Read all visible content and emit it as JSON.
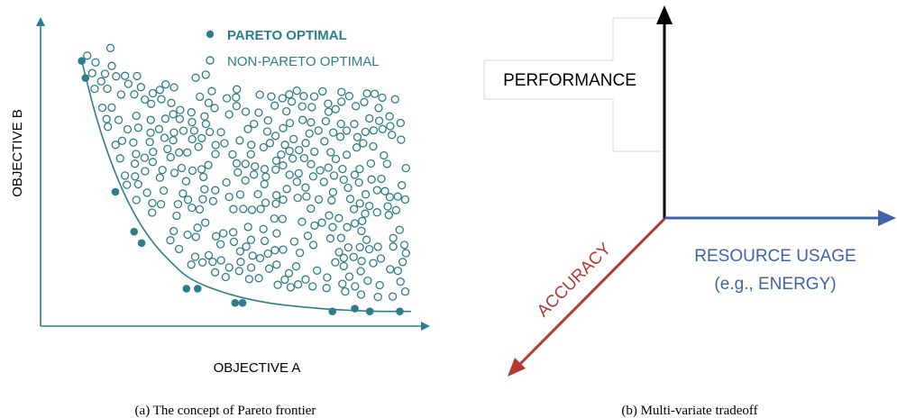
{
  "colors": {
    "teal": "#2e7d8c",
    "black": "#000000",
    "blue": "#3d63a8",
    "red": "#b33a32",
    "frame": "#d0d0d0"
  },
  "left_panel": {
    "caption": "(a) The concept of Pareto frontier",
    "legend": {
      "pareto_label": "PARETO OPTIMAL",
      "non_pareto_label": "NON-PARETO OPTIMAL"
    },
    "chart_data": {
      "type": "scatter",
      "xlabel": "OBJECTIVE A",
      "ylabel": "OBJECTIVE B",
      "xlim": [
        0,
        1
      ],
      "ylim": [
        0,
        1
      ],
      "grid": false,
      "legend_position": "top-right",
      "series": [
        {
          "name": "PARETO OPTIMAL",
          "style": "filled",
          "points": [
            [
              0.11,
              0.9
            ],
            [
              0.12,
              0.84
            ],
            [
              0.2,
              0.44
            ],
            [
              0.25,
              0.3
            ],
            [
              0.27,
              0.26
            ],
            [
              0.39,
              0.1
            ],
            [
              0.42,
              0.1
            ],
            [
              0.52,
              0.05
            ],
            [
              0.54,
              0.05
            ],
            [
              0.78,
              0.02
            ],
            [
              0.84,
              0.03
            ],
            [
              0.88,
              0.02
            ],
            [
              0.96,
              0.02
            ]
          ]
        },
        {
          "name": "NON-PARETO OPTIMAL",
          "style": "hollow"
        }
      ],
      "frontier_curve": [
        [
          0.11,
          0.9
        ],
        [
          0.15,
          0.69
        ],
        [
          0.2,
          0.5
        ],
        [
          0.25,
          0.36
        ],
        [
          0.3,
          0.26
        ],
        [
          0.35,
          0.19
        ],
        [
          0.4,
          0.13
        ],
        [
          0.5,
          0.08
        ],
        [
          0.6,
          0.05
        ],
        [
          0.7,
          0.035
        ],
        [
          0.8,
          0.025
        ],
        [
          0.9,
          0.02
        ],
        [
          0.99,
          0.02
        ]
      ]
    }
  },
  "right_panel": {
    "caption": "(b) Multi-variate tradeoff",
    "axes": {
      "performance": "PERFORMANCE",
      "resource_line1": "RESOURCE USAGE",
      "resource_line2": "(e.g., ENERGY)",
      "accuracy": "ACCURACY"
    }
  }
}
